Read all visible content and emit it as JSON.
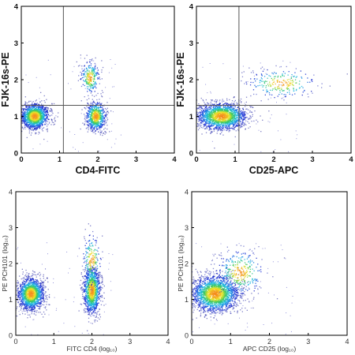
{
  "chart_data": [
    {
      "type": "scatter",
      "panel": "top-left",
      "style": "bold",
      "xlabel": "CD4-FITC",
      "ylabel": "FJK-16s-PE",
      "xlim": [
        0,
        4
      ],
      "ylim": [
        0,
        4
      ],
      "xticks": [
        "0",
        "1",
        "2",
        "3",
        "4"
      ],
      "yticks": [
        "0",
        "1",
        "2",
        "3",
        "4"
      ],
      "gate_x": 1.1,
      "gate_y": 1.3,
      "clusters": [
        {
          "x": 0.35,
          "y": 1.0,
          "sx": 0.18,
          "sy": 0.17,
          "n": 1400
        },
        {
          "x": 1.95,
          "y": 1.0,
          "sx": 0.13,
          "sy": 0.2,
          "n": 700
        },
        {
          "x": 1.8,
          "y": 2.05,
          "sx": 0.12,
          "sy": 0.22,
          "n": 240
        }
      ]
    },
    {
      "type": "scatter",
      "panel": "top-right",
      "style": "bold",
      "xlabel": "CD25-APC",
      "ylabel": "FJK-16s-PE",
      "xlim": [
        0,
        4
      ],
      "ylim": [
        0,
        4
      ],
      "xticks": [
        "0",
        "1",
        "2",
        "3",
        "4"
      ],
      "yticks": [
        "0",
        "1",
        "2",
        "3",
        "4"
      ],
      "gate_x": 1.1,
      "gate_y": 1.3,
      "clusters": [
        {
          "x": 0.65,
          "y": 1.0,
          "sx": 0.32,
          "sy": 0.18,
          "n": 1800
        },
        {
          "x": 2.2,
          "y": 1.9,
          "sx": 0.45,
          "sy": 0.2,
          "n": 240
        }
      ]
    },
    {
      "type": "scatter",
      "panel": "bottom-left",
      "style": "light",
      "xlabel": "FITC CD4 (log₁₀)",
      "ylabel": "PE PCH101 (log₁₀)",
      "xlim": [
        0,
        4
      ],
      "ylim": [
        0,
        4
      ],
      "xticks": [
        "0",
        "1",
        "2",
        "3",
        "4"
      ],
      "yticks": [
        "0",
        "1",
        "2",
        "3",
        "4"
      ],
      "clusters": [
        {
          "x": 0.4,
          "y": 1.15,
          "sx": 0.17,
          "sy": 0.22,
          "n": 1500
        },
        {
          "x": 2.0,
          "y": 1.25,
          "sx": 0.11,
          "sy": 0.33,
          "n": 1100
        },
        {
          "x": 2.0,
          "y": 2.1,
          "sx": 0.12,
          "sy": 0.35,
          "n": 200
        }
      ]
    },
    {
      "type": "scatter",
      "panel": "bottom-right",
      "style": "light",
      "xlabel": "APC CD25 (log₁₀)",
      "ylabel": "PE PCH101 (log₁₀)",
      "xlim": [
        0,
        4
      ],
      "ylim": [
        0,
        4
      ],
      "xticks": [
        "0",
        "1",
        "2",
        "3",
        "4"
      ],
      "yticks": [
        "0",
        "1",
        "2",
        "3",
        "4"
      ],
      "clusters": [
        {
          "x": 0.6,
          "y": 1.15,
          "sx": 0.3,
          "sy": 0.25,
          "n": 2000
        },
        {
          "x": 1.25,
          "y": 1.75,
          "sx": 0.3,
          "sy": 0.32,
          "n": 320
        }
      ]
    }
  ]
}
